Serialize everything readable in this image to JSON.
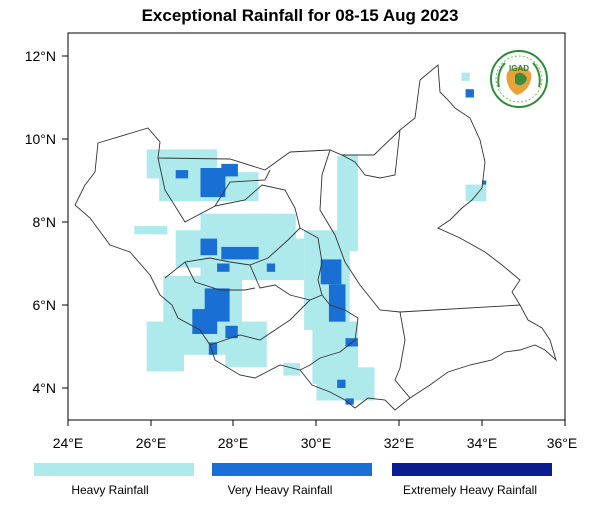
{
  "title": "Exceptional Rainfall for 08-15 Aug 2023",
  "logo": {
    "text": "IGAD"
  },
  "axes": {
    "x_ticks": [
      "24°E",
      "26°E",
      "28°E",
      "30°E",
      "32°E",
      "34°E",
      "36°E"
    ],
    "y_ticks": [
      "12°N",
      "10°N",
      "8°N",
      "6°N",
      "4°N"
    ],
    "lon_range": [
      24,
      36
    ],
    "lat_range": [
      3.3,
      12.3
    ]
  },
  "legend": [
    {
      "label": "Heavy Rainfall",
      "color": "#aeeaec"
    },
    {
      "label": "Very Heavy Rainfall",
      "color": "#1a6fd4"
    },
    {
      "label": "Extremely Heavy Rainfall",
      "color": "#0b1d8c"
    }
  ],
  "colors": {
    "heavy": "#aeeaec",
    "very_heavy": "#1a6fd4",
    "extreme": "#0b1d8c"
  },
  "rainfall_areas": [
    {
      "category": "heavy",
      "lon": [
        25.9,
        27.6
      ],
      "lat": [
        9.05,
        9.75
      ]
    },
    {
      "category": "heavy",
      "lon": [
        26.2,
        28.6
      ],
      "lat": [
        8.5,
        9.2
      ]
    },
    {
      "category": "heavy",
      "lon": [
        26.6,
        28.4
      ],
      "lat": [
        6.9,
        7.8
      ]
    },
    {
      "category": "heavy",
      "lon": [
        27.2,
        29.0
      ],
      "lat": [
        6.6,
        8.2
      ]
    },
    {
      "category": "heavy",
      "lon": [
        28.3,
        29.5
      ],
      "lat": [
        7.3,
        8.2
      ]
    },
    {
      "category": "heavy",
      "lon": [
        28.5,
        29.7
      ],
      "lat": [
        6.6,
        7.6
      ]
    },
    {
      "category": "heavy",
      "lon": [
        29.7,
        30.8
      ],
      "lat": [
        5.4,
        7.8
      ]
    },
    {
      "category": "heavy",
      "lon": [
        30.5,
        31.0
      ],
      "lat": [
        7.3,
        9.6
      ]
    },
    {
      "category": "heavy",
      "lon": [
        26.3,
        28.2
      ],
      "lat": [
        4.8,
        6.7
      ]
    },
    {
      "category": "heavy",
      "lon": [
        25.9,
        26.8
      ],
      "lat": [
        4.4,
        5.6
      ]
    },
    {
      "category": "heavy",
      "lon": [
        27.8,
        28.8
      ],
      "lat": [
        4.5,
        5.6
      ]
    },
    {
      "category": "heavy",
      "lon": [
        29.9,
        31.0
      ],
      "lat": [
        4.1,
        5.6
      ]
    },
    {
      "category": "heavy",
      "lon": [
        30.0,
        31.4
      ],
      "lat": [
        3.7,
        4.5
      ]
    },
    {
      "category": "heavy",
      "lon": [
        29.2,
        29.6
      ],
      "lat": [
        4.3,
        4.6
      ]
    },
    {
      "category": "heavy",
      "lon": [
        25.6,
        26.4
      ],
      "lat": [
        7.7,
        7.9
      ]
    },
    {
      "category": "heavy",
      "lon": [
        33.6,
        34.1
      ],
      "lat": [
        8.5,
        8.9
      ]
    },
    {
      "category": "heavy",
      "lon": [
        33.5,
        33.7
      ],
      "lat": [
        11.4,
        11.6
      ]
    },
    {
      "category": "very_heavy",
      "lon": [
        27.2,
        27.8
      ],
      "lat": [
        8.6,
        9.3
      ]
    },
    {
      "category": "very_heavy",
      "lon": [
        27.7,
        28.1
      ],
      "lat": [
        9.1,
        9.4
      ]
    },
    {
      "category": "very_heavy",
      "lon": [
        26.6,
        26.9
      ],
      "lat": [
        9.05,
        9.25
      ]
    },
    {
      "category": "very_heavy",
      "lon": [
        27.2,
        27.6
      ],
      "lat": [
        7.2,
        7.6
      ]
    },
    {
      "category": "very_heavy",
      "lon": [
        27.7,
        28.6
      ],
      "lat": [
        7.1,
        7.4
      ]
    },
    {
      "category": "very_heavy",
      "lon": [
        27.6,
        27.9
      ],
      "lat": [
        6.8,
        7.0
      ]
    },
    {
      "category": "very_heavy",
      "lon": [
        30.1,
        30.6
      ],
      "lat": [
        6.5,
        7.1
      ]
    },
    {
      "category": "very_heavy",
      "lon": [
        30.3,
        30.7
      ],
      "lat": [
        5.6,
        6.5
      ]
    },
    {
      "category": "very_heavy",
      "lon": [
        27.3,
        27.9
      ],
      "lat": [
        5.6,
        6.4
      ]
    },
    {
      "category": "very_heavy",
      "lon": [
        27.0,
        27.6
      ],
      "lat": [
        5.3,
        5.9
      ]
    },
    {
      "category": "very_heavy",
      "lon": [
        27.4,
        27.6
      ],
      "lat": [
        4.8,
        5.1
      ]
    },
    {
      "category": "very_heavy",
      "lon": [
        27.8,
        28.1
      ],
      "lat": [
        5.2,
        5.5
      ]
    },
    {
      "category": "very_heavy",
      "lon": [
        30.7,
        31.0
      ],
      "lat": [
        5.0,
        5.2
      ]
    },
    {
      "category": "very_heavy",
      "lon": [
        30.5,
        30.7
      ],
      "lat": [
        4.0,
        4.2
      ]
    },
    {
      "category": "very_heavy",
      "lon": [
        28.8,
        29.0
      ],
      "lat": [
        6.8,
        7.0
      ]
    },
    {
      "category": "very_heavy",
      "lon": [
        33.6,
        33.8
      ],
      "lat": [
        11.0,
        11.2
      ]
    },
    {
      "category": "very_heavy",
      "lon": [
        34.0,
        34.1
      ],
      "lat": [
        8.9,
        9.0
      ]
    },
    {
      "category": "very_heavy",
      "lon": [
        30.7,
        30.9
      ],
      "lat": [
        3.6,
        3.75
      ]
    }
  ]
}
